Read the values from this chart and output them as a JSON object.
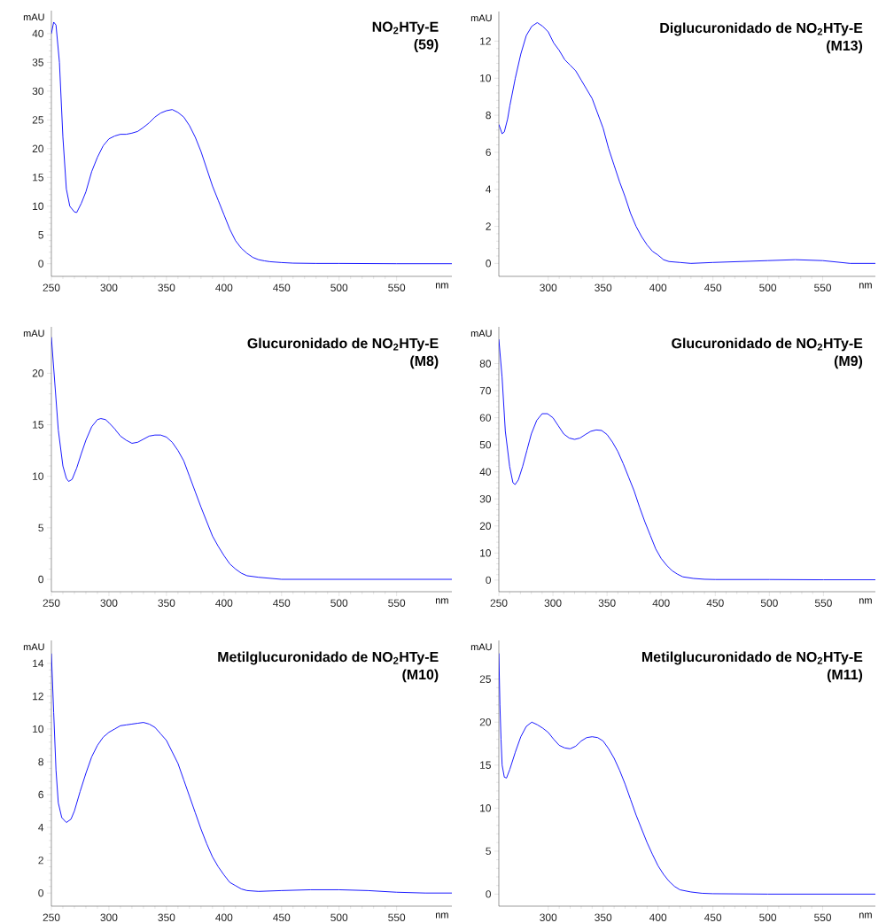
{
  "chart_data": [
    {
      "type": "line",
      "title": "NO$_{2}$HTy-E",
      "subtitle": "(59)",
      "xlabel": "nm",
      "ylabel": "mAU",
      "color": "#0000ff",
      "xlim": [
        250,
        598
      ],
      "ylim": [
        -2.2,
        44
      ],
      "xticks": [
        250,
        300,
        350,
        400,
        450,
        500,
        550
      ],
      "yticks": [
        0,
        5,
        10,
        15,
        20,
        25,
        30,
        35,
        40
      ],
      "x": [
        250,
        252,
        254,
        257,
        260,
        263,
        266,
        270,
        272,
        276,
        280,
        285,
        290,
        295,
        300,
        305,
        310,
        315,
        320,
        325,
        330,
        335,
        340,
        345,
        350,
        355,
        360,
        365,
        370,
        375,
        380,
        385,
        390,
        395,
        400,
        405,
        410,
        415,
        420,
        425,
        430,
        435,
        440,
        450,
        460,
        480,
        500,
        550,
        598
      ],
      "values": [
        40,
        42,
        41.5,
        35,
        22,
        13,
        10,
        9,
        8.9,
        10.5,
        12.5,
        16,
        18.5,
        20.5,
        21.7,
        22.2,
        22.5,
        22.5,
        22.7,
        23,
        23.7,
        24.5,
        25.5,
        26.2,
        26.6,
        26.8,
        26.3,
        25.5,
        24,
        22,
        19.5,
        16.5,
        13.5,
        11,
        8.5,
        6,
        4,
        2.7,
        1.8,
        1.1,
        0.7,
        0.5,
        0.35,
        0.2,
        0.1,
        0.05,
        0.05,
        0,
        0
      ]
    },
    {
      "type": "line",
      "title": "Diglucuronidado de NO$_{2}$HTy-E",
      "subtitle": "(M13)",
      "xlabel": "nm",
      "ylabel": "mAU",
      "color": "#0000ff",
      "xlim": [
        255,
        598
      ],
      "ylim": [
        -0.7,
        13.6
      ],
      "xticks": [
        300,
        350,
        400,
        450,
        500,
        550
      ],
      "yticks": [
        0,
        2,
        4,
        6,
        8,
        10,
        12
      ],
      "x": [
        255,
        258,
        260,
        263,
        265,
        270,
        275,
        280,
        285,
        290,
        295,
        300,
        305,
        310,
        315,
        320,
        325,
        330,
        335,
        340,
        345,
        350,
        355,
        360,
        365,
        370,
        375,
        380,
        385,
        390,
        395,
        400,
        405,
        410,
        420,
        430,
        450,
        475,
        500,
        525,
        550,
        575,
        598
      ],
      "values": [
        7.5,
        7.0,
        7.1,
        7.8,
        8.5,
        10.0,
        11.3,
        12.3,
        12.8,
        13.0,
        12.8,
        12.5,
        11.9,
        11.5,
        11.0,
        10.7,
        10.4,
        9.9,
        9.4,
        8.9,
        8.1,
        7.3,
        6.2,
        5.3,
        4.4,
        3.6,
        2.7,
        2.0,
        1.45,
        1.0,
        0.65,
        0.45,
        0.2,
        0.1,
        0.05,
        0.0,
        0.05,
        0.1,
        0.15,
        0.2,
        0.15,
        0.0,
        0.0
      ]
    },
    {
      "type": "line",
      "title": "Glucuronidado de NO$_{2}$HTy-E",
      "subtitle": "(M8)",
      "xlabel": "nm",
      "ylabel": "mAU",
      "color": "#0000ff",
      "xlim": [
        250,
        598
      ],
      "ylim": [
        -1.2,
        24.5
      ],
      "xticks": [
        250,
        300,
        350,
        400,
        450,
        500,
        550
      ],
      "yticks": [
        0,
        5,
        10,
        15,
        20
      ],
      "x": [
        250,
        253,
        256,
        260,
        263,
        265,
        268,
        272,
        276,
        280,
        285,
        290,
        293,
        297,
        300,
        305,
        310,
        315,
        320,
        325,
        330,
        335,
        340,
        345,
        350,
        355,
        360,
        365,
        370,
        375,
        380,
        385,
        390,
        395,
        400,
        405,
        410,
        415,
        420,
        430,
        440,
        450,
        500,
        550,
        598
      ],
      "values": [
        23.5,
        19,
        14.5,
        11,
        9.8,
        9.5,
        9.7,
        10.8,
        12.2,
        13.5,
        14.8,
        15.5,
        15.6,
        15.5,
        15.2,
        14.6,
        13.9,
        13.5,
        13.2,
        13.3,
        13.6,
        13.9,
        14.0,
        14.0,
        13.8,
        13.3,
        12.5,
        11.5,
        10.0,
        8.5,
        7.0,
        5.6,
        4.2,
        3.2,
        2.3,
        1.5,
        1.0,
        0.6,
        0.35,
        0.2,
        0.1,
        0,
        0,
        0,
        0
      ]
    },
    {
      "type": "line",
      "title": "Glucuronidado de NO$_{2}$HTy-E",
      "subtitle": "(M9)",
      "xlabel": "nm",
      "ylabel": "mAU",
      "color": "#0000ff",
      "xlim": [
        250,
        598
      ],
      "ylim": [
        -4.3,
        93.6
      ],
      "xticks": [
        250,
        300,
        350,
        400,
        450,
        500,
        550
      ],
      "yticks": [
        0,
        10,
        20,
        30,
        40,
        50,
        60,
        70,
        80
      ],
      "x": [
        250,
        253,
        256,
        260,
        263,
        265,
        268,
        272,
        276,
        280,
        285,
        290,
        295,
        300,
        305,
        310,
        315,
        320,
        325,
        330,
        335,
        340,
        345,
        350,
        355,
        360,
        365,
        370,
        375,
        380,
        385,
        390,
        395,
        400,
        405,
        410,
        415,
        420,
        430,
        440,
        450,
        500,
        550,
        598
      ],
      "values": [
        89,
        75,
        55,
        42,
        36,
        35.3,
        37,
        42,
        48,
        54,
        59,
        61.5,
        61.5,
        60,
        57,
        54,
        52.5,
        52,
        52.5,
        53.8,
        55,
        55.5,
        55.3,
        53.8,
        51,
        47.5,
        43,
        38,
        33,
        27,
        21.5,
        16.5,
        11.5,
        8,
        5.5,
        3.5,
        2.2,
        1.2,
        0.6,
        0.3,
        0.2,
        0.2,
        0.1,
        0.1
      ]
    },
    {
      "type": "line",
      "title": "Metilglucuronidado de NO$_{2}$HTy-E",
      "subtitle": "(M10)",
      "xlabel": "nm",
      "ylabel": "mAU",
      "color": "#0000ff",
      "xlim": [
        250,
        598
      ],
      "ylim": [
        -0.8,
        15.4
      ],
      "xticks": [
        250,
        300,
        350,
        400,
        450,
        500,
        550
      ],
      "yticks": [
        0,
        2,
        4,
        6,
        8,
        10,
        12,
        14
      ],
      "x": [
        250,
        252,
        254,
        256,
        259,
        263,
        267,
        270,
        275,
        280,
        285,
        290,
        295,
        300,
        305,
        310,
        315,
        320,
        325,
        330,
        335,
        340,
        345,
        350,
        355,
        360,
        365,
        370,
        375,
        380,
        385,
        390,
        395,
        400,
        405,
        410,
        415,
        420,
        430,
        450,
        475,
        500,
        525,
        550,
        575,
        598
      ],
      "values": [
        14.6,
        11,
        7.5,
        5.5,
        4.6,
        4.3,
        4.5,
        5,
        6.2,
        7.3,
        8.3,
        9.0,
        9.5,
        9.8,
        10.0,
        10.2,
        10.25,
        10.3,
        10.35,
        10.4,
        10.3,
        10.1,
        9.7,
        9.3,
        8.6,
        7.9,
        6.9,
        5.9,
        4.9,
        3.9,
        3.0,
        2.2,
        1.6,
        1.1,
        0.65,
        0.45,
        0.25,
        0.15,
        0.1,
        0.15,
        0.2,
        0.2,
        0.15,
        0.05,
        0,
        0
      ]
    },
    {
      "type": "line",
      "title": "Metilglucuronidado de NO$_{2}$HTy-E",
      "subtitle": "(M11)",
      "xlabel": "nm",
      "ylabel": "mAU",
      "color": "#0000ff",
      "xlim": [
        255,
        598
      ],
      "ylim": [
        -1.4,
        29.5
      ],
      "xticks": [
        300,
        350,
        400,
        450,
        500,
        550
      ],
      "yticks": [
        0,
        5,
        10,
        15,
        20,
        25
      ],
      "x": [
        255,
        256,
        257,
        258,
        260,
        262,
        265,
        270,
        275,
        280,
        285,
        290,
        295,
        300,
        305,
        310,
        315,
        320,
        325,
        330,
        335,
        340,
        345,
        350,
        355,
        360,
        365,
        370,
        375,
        380,
        385,
        390,
        395,
        400,
        405,
        410,
        415,
        420,
        430,
        440,
        450,
        500,
        550,
        598
      ],
      "values": [
        28,
        22,
        18,
        15,
        13.6,
        13.5,
        14.5,
        16.5,
        18.3,
        19.5,
        20.0,
        19.7,
        19.3,
        18.8,
        18.0,
        17.3,
        17.0,
        16.9,
        17.2,
        17.8,
        18.2,
        18.3,
        18.2,
        17.8,
        16.9,
        15.8,
        14.4,
        12.8,
        11,
        9.2,
        7.6,
        6.0,
        4.6,
        3.3,
        2.3,
        1.5,
        0.9,
        0.5,
        0.25,
        0.1,
        0.05,
        0,
        0,
        0
      ]
    }
  ]
}
